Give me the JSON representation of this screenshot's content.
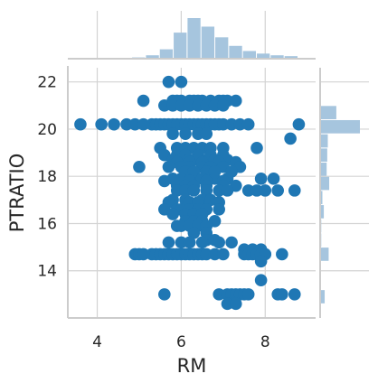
{
  "chart_data": {
    "type": "scatter",
    "subtype": "jointplot",
    "xlabel": "RM",
    "ylabel": "PTRATIO",
    "xlim": [
      3.3,
      9.2
    ],
    "ylim": [
      12.0,
      22.6
    ],
    "x_ticks": [
      4,
      6,
      8
    ],
    "y_ticks": [
      14,
      16,
      18,
      20,
      22
    ],
    "grid": true,
    "colors": {
      "scatter": "#1f77b4",
      "histogram": "#a6c5de",
      "grid": "#d3d3d3",
      "axis": "#cccccc",
      "text": "#262626"
    },
    "points": [
      [
        5.7,
        22.0
      ],
      [
        6.0,
        22.0
      ],
      [
        5.1,
        21.2
      ],
      [
        5.8,
        21.2
      ],
      [
        6.0,
        21.2
      ],
      [
        6.2,
        21.2
      ],
      [
        6.4,
        21.2
      ],
      [
        6.5,
        21.2
      ],
      [
        6.7,
        21.2
      ],
      [
        6.9,
        21.2
      ],
      [
        7.0,
        21.2
      ],
      [
        7.1,
        21.2
      ],
      [
        7.3,
        21.2
      ],
      [
        6.3,
        21.2
      ],
      [
        5.9,
        21.2
      ],
      [
        5.6,
        21.0
      ],
      [
        5.8,
        21.0
      ],
      [
        6.0,
        21.0
      ],
      [
        6.2,
        21.0
      ],
      [
        6.4,
        21.0
      ],
      [
        6.6,
        21.0
      ],
      [
        6.8,
        21.0
      ],
      [
        7.0,
        21.0
      ],
      [
        3.6,
        20.2
      ],
      [
        4.1,
        20.2
      ],
      [
        4.4,
        20.2
      ],
      [
        4.7,
        20.2
      ],
      [
        4.9,
        20.2
      ],
      [
        5.1,
        20.2
      ],
      [
        5.3,
        20.2
      ],
      [
        5.4,
        20.2
      ],
      [
        5.5,
        20.2
      ],
      [
        5.6,
        20.2
      ],
      [
        5.7,
        20.2
      ],
      [
        5.8,
        20.2
      ],
      [
        5.9,
        20.2
      ],
      [
        6.0,
        20.2
      ],
      [
        6.1,
        20.2
      ],
      [
        6.2,
        20.2
      ],
      [
        6.3,
        20.2
      ],
      [
        6.4,
        20.2
      ],
      [
        6.5,
        20.2
      ],
      [
        6.6,
        20.2
      ],
      [
        6.7,
        20.2
      ],
      [
        6.8,
        20.2
      ],
      [
        6.9,
        20.2
      ],
      [
        7.0,
        20.2
      ],
      [
        7.2,
        20.2
      ],
      [
        7.4,
        20.2
      ],
      [
        7.6,
        20.2
      ],
      [
        8.8,
        20.2
      ],
      [
        5.8,
        19.8
      ],
      [
        6.1,
        19.8
      ],
      [
        6.4,
        19.8
      ],
      [
        6.6,
        19.8
      ],
      [
        8.6,
        19.6
      ],
      [
        5.5,
        19.2
      ],
      [
        5.9,
        19.2
      ],
      [
        6.1,
        19.2
      ],
      [
        6.3,
        19.2
      ],
      [
        6.5,
        19.2
      ],
      [
        6.7,
        19.2
      ],
      [
        7.0,
        19.2
      ],
      [
        7.8,
        19.2
      ],
      [
        5.6,
        18.9
      ],
      [
        5.9,
        18.9
      ],
      [
        6.1,
        18.9
      ],
      [
        6.4,
        18.9
      ],
      [
        6.7,
        18.9
      ],
      [
        7.0,
        18.9
      ],
      [
        5.8,
        18.7
      ],
      [
        6.0,
        18.7
      ],
      [
        6.2,
        18.7
      ],
      [
        6.4,
        18.7
      ],
      [
        6.6,
        18.7
      ],
      [
        6.8,
        18.7
      ],
      [
        7.1,
        18.7
      ],
      [
        5.9,
        18.6
      ],
      [
        6.2,
        18.6
      ],
      [
        6.5,
        18.6
      ],
      [
        6.9,
        18.6
      ],
      [
        7.3,
        18.6
      ],
      [
        5.0,
        18.4
      ],
      [
        5.7,
        18.4
      ],
      [
        6.0,
        18.4
      ],
      [
        6.2,
        18.4
      ],
      [
        6.5,
        18.4
      ],
      [
        6.7,
        18.4
      ],
      [
        7.0,
        18.4
      ],
      [
        7.4,
        18.4
      ],
      [
        6.1,
        18.2
      ],
      [
        6.3,
        18.2
      ],
      [
        6.6,
        18.2
      ],
      [
        6.8,
        18.2
      ],
      [
        7.2,
        18.2
      ],
      [
        5.8,
        17.9
      ],
      [
        6.0,
        17.9
      ],
      [
        6.3,
        17.9
      ],
      [
        6.5,
        17.9
      ],
      [
        6.8,
        17.9
      ],
      [
        7.1,
        17.9
      ],
      [
        7.9,
        17.9
      ],
      [
        8.2,
        17.9
      ],
      [
        5.6,
        17.8
      ],
      [
        6.2,
        17.8
      ],
      [
        6.6,
        17.8
      ],
      [
        7.0,
        17.8
      ],
      [
        5.9,
        17.6
      ],
      [
        6.1,
        17.6
      ],
      [
        6.3,
        17.6
      ],
      [
        6.6,
        17.6
      ],
      [
        7.0,
        17.6
      ],
      [
        7.3,
        17.6
      ],
      [
        5.9,
        17.4
      ],
      [
        6.1,
        17.4
      ],
      [
        6.3,
        17.4
      ],
      [
        6.6,
        17.4
      ],
      [
        6.9,
        17.4
      ],
      [
        7.1,
        17.4
      ],
      [
        7.6,
        17.4
      ],
      [
        7.8,
        17.4
      ],
      [
        8.0,
        17.4
      ],
      [
        8.3,
        17.4
      ],
      [
        8.7,
        17.4
      ],
      [
        5.8,
        17.0
      ],
      [
        6.1,
        17.0
      ],
      [
        6.5,
        17.0
      ],
      [
        6.7,
        17.0
      ],
      [
        5.7,
        16.9
      ],
      [
        6.2,
        16.9
      ],
      [
        6.4,
        16.9
      ],
      [
        6.9,
        16.9
      ],
      [
        5.9,
        16.6
      ],
      [
        6.0,
        16.6
      ],
      [
        6.2,
        16.6
      ],
      [
        6.4,
        16.6
      ],
      [
        6.6,
        16.6
      ],
      [
        6.9,
        16.6
      ],
      [
        5.6,
        16.6
      ],
      [
        5.8,
        16.4
      ],
      [
        6.1,
        16.4
      ],
      [
        6.3,
        16.4
      ],
      [
        6.5,
        16.4
      ],
      [
        6.1,
        16.1
      ],
      [
        6.3,
        16.1
      ],
      [
        6.5,
        16.1
      ],
      [
        6.8,
        16.1
      ],
      [
        5.9,
        15.9
      ],
      [
        6.0,
        15.9
      ],
      [
        6.2,
        15.9
      ],
      [
        6.4,
        15.9
      ],
      [
        6.6,
        15.9
      ],
      [
        6.3,
        15.6
      ],
      [
        6.6,
        15.6
      ],
      [
        6.6,
        15.3
      ],
      [
        6.8,
        15.3
      ],
      [
        5.7,
        15.2
      ],
      [
        6.0,
        15.2
      ],
      [
        6.2,
        15.2
      ],
      [
        6.5,
        15.2
      ],
      [
        6.9,
        15.2
      ],
      [
        7.2,
        15.2
      ],
      [
        7.5,
        14.9
      ],
      [
        7.7,
        14.9
      ],
      [
        7.9,
        14.9
      ],
      [
        4.9,
        14.7
      ],
      [
        5.0,
        14.7
      ],
      [
        5.1,
        14.7
      ],
      [
        5.3,
        14.7
      ],
      [
        5.4,
        14.7
      ],
      [
        5.5,
        14.7
      ],
      [
        5.6,
        14.7
      ],
      [
        5.7,
        14.7
      ],
      [
        5.8,
        14.7
      ],
      [
        5.9,
        14.7
      ],
      [
        6.0,
        14.7
      ],
      [
        6.1,
        14.7
      ],
      [
        6.2,
        14.7
      ],
      [
        6.3,
        14.7
      ],
      [
        6.4,
        14.7
      ],
      [
        6.5,
        14.7
      ],
      [
        6.6,
        14.7
      ],
      [
        6.8,
        14.7
      ],
      [
        7.0,
        14.7
      ],
      [
        7.5,
        14.7
      ],
      [
        7.6,
        14.7
      ],
      [
        7.7,
        14.7
      ],
      [
        7.8,
        14.7
      ],
      [
        7.9,
        14.7
      ],
      [
        8.0,
        14.7
      ],
      [
        8.4,
        14.7
      ],
      [
        7.9,
        14.4
      ],
      [
        7.9,
        13.6
      ],
      [
        5.6,
        13.0
      ],
      [
        6.9,
        13.0
      ],
      [
        7.1,
        13.0
      ],
      [
        7.2,
        13.0
      ],
      [
        7.3,
        13.0
      ],
      [
        7.4,
        13.0
      ],
      [
        7.5,
        13.0
      ],
      [
        7.6,
        13.0
      ],
      [
        8.3,
        13.0
      ],
      [
        8.4,
        13.0
      ],
      [
        8.7,
        13.0
      ],
      [
        7.1,
        12.6
      ],
      [
        7.3,
        12.6
      ]
    ],
    "x_hist": {
      "bins": [
        3.5,
        3.83,
        4.16,
        4.49,
        4.82,
        5.15,
        5.48,
        5.81,
        6.14,
        6.47,
        6.8,
        7.13,
        7.46,
        7.79,
        8.12,
        8.45,
        8.78
      ],
      "counts": [
        1,
        0,
        0,
        2,
        3,
        8,
        22,
        61,
        95,
        75,
        50,
        30,
        18,
        12,
        8,
        6
      ]
    },
    "y_hist": {
      "bins": [
        12.6,
        13.2,
        13.8,
        14.4,
        15.0,
        15.6,
        16.2,
        16.8,
        17.4,
        18.0,
        18.6,
        19.2,
        19.8,
        20.4,
        21.0,
        21.6,
        22.0
      ],
      "counts": [
        16,
        0,
        1,
        30,
        4,
        4,
        13,
        8,
        32,
        23,
        25,
        27,
        140,
        57,
        2,
        1
      ]
    }
  }
}
